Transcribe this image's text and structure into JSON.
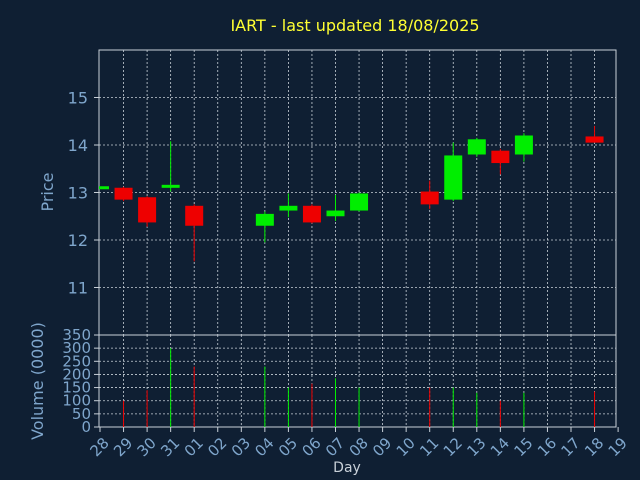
{
  "chart_data": {
    "type": "candlestick",
    "title": "IART - last updated 18/08/2025",
    "xlabel": "Day",
    "ylabel": "Price",
    "volume_label": "Volume (0000)",
    "grid": true,
    "colors": {
      "background": "#0f1f33",
      "title": "#ffff33",
      "axis_text": "#7fa6cc",
      "frame": "#c8d0d8",
      "up": "#00ee00",
      "down": "#ee0000"
    },
    "price_axis": {
      "range": [
        10.0,
        16.0
      ],
      "ticks": [
        11,
        12,
        13,
        14,
        15
      ]
    },
    "volume_axis": {
      "range": [
        0,
        350
      ],
      "ticks": [
        0,
        50,
        100,
        150,
        200,
        250,
        300,
        350
      ]
    },
    "x_ticks": [
      "28",
      "29",
      "30",
      "31",
      "01",
      "02",
      "03",
      "04",
      "05",
      "06",
      "07",
      "08",
      "09",
      "10",
      "11",
      "12",
      "13",
      "14",
      "15",
      "16",
      "17",
      "18",
      "19"
    ],
    "candles": [
      {
        "day": "28",
        "open": 13.08,
        "high": 13.12,
        "low": 13.08,
        "close": 13.12,
        "volume": 0
      },
      {
        "day": "29",
        "open": 13.1,
        "high": 13.12,
        "low": 12.82,
        "close": 12.85,
        "volume": 100
      },
      {
        "day": "30",
        "open": 12.9,
        "high": 12.92,
        "low": 12.28,
        "close": 12.37,
        "volume": 140
      },
      {
        "day": "31",
        "open": 13.1,
        "high": 14.08,
        "low": 13.02,
        "close": 13.16,
        "volume": 300
      },
      {
        "day": "01",
        "open": 12.72,
        "high": 12.75,
        "low": 11.55,
        "close": 12.3,
        "volume": 230
      },
      {
        "day": "04",
        "open": 12.3,
        "high": 12.6,
        "low": 11.95,
        "close": 12.55,
        "volume": 230
      },
      {
        "day": "05",
        "open": 12.62,
        "high": 12.98,
        "low": 12.48,
        "close": 12.72,
        "volume": 150
      },
      {
        "day": "06",
        "open": 12.72,
        "high": 12.75,
        "low": 12.35,
        "close": 12.37,
        "volume": 165
      },
      {
        "day": "07",
        "open": 12.5,
        "high": 12.95,
        "low": 12.4,
        "close": 12.62,
        "volume": 185
      },
      {
        "day": "08",
        "open": 12.62,
        "high": 13.0,
        "low": 12.6,
        "close": 12.98,
        "volume": 150
      },
      {
        "day": "11",
        "open": 13.02,
        "high": 13.25,
        "low": 12.65,
        "close": 12.75,
        "volume": 150
      },
      {
        "day": "12",
        "open": 12.85,
        "high": 14.05,
        "low": 12.82,
        "close": 13.78,
        "volume": 150
      },
      {
        "day": "13",
        "open": 13.8,
        "high": 14.15,
        "low": 13.75,
        "close": 14.12,
        "volume": 130
      },
      {
        "day": "14",
        "open": 13.88,
        "high": 13.92,
        "low": 13.38,
        "close": 13.62,
        "volume": 100
      },
      {
        "day": "15",
        "open": 13.8,
        "high": 14.25,
        "low": 13.65,
        "close": 14.2,
        "volume": 130
      },
      {
        "day": "18",
        "open": 14.18,
        "high": 14.4,
        "low": 14.05,
        "close": 14.05,
        "volume": 135
      }
    ]
  }
}
